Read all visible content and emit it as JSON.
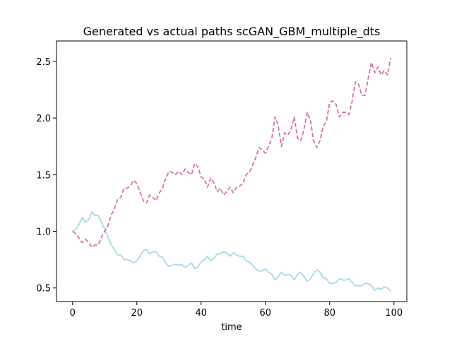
{
  "chart_data": {
    "type": "line",
    "title": "Generated vs actual paths scGAN_GBM_multiple_dts",
    "xlabel": "time",
    "ylabel": "",
    "xlim": [
      -5,
      104
    ],
    "ylim": [
      0.38,
      2.68
    ],
    "grid": false,
    "xticks": [
      0,
      20,
      40,
      60,
      80,
      100
    ],
    "yticks": [
      0.5,
      1.0,
      1.5,
      2.0,
      2.5
    ],
    "xtick_labels": [
      "0",
      "20",
      "40",
      "60",
      "80",
      "100"
    ],
    "ytick_labels": [
      "0.5",
      "1.0",
      "1.5",
      "2.0",
      "2.5"
    ],
    "series": [
      {
        "color": "#a9d8e6",
        "style": "solid",
        "x": [
          0,
          1,
          2,
          3,
          4,
          5,
          6,
          7,
          8,
          9,
          10,
          11,
          12,
          13,
          14,
          15,
          16,
          17,
          18,
          19,
          20,
          21,
          22,
          23,
          24,
          25,
          26,
          27,
          28,
          29,
          30,
          31,
          32,
          33,
          34,
          35,
          36,
          37,
          38,
          39,
          40,
          41,
          42,
          43,
          44,
          45,
          46,
          47,
          48,
          49,
          50,
          51,
          52,
          53,
          54,
          55,
          56,
          57,
          58,
          59,
          60,
          61,
          62,
          63,
          64,
          65,
          66,
          67,
          68,
          69,
          70,
          71,
          72,
          73,
          74,
          75,
          76,
          77,
          78,
          79,
          80,
          81,
          82,
          83,
          84,
          85,
          86,
          87,
          88,
          89,
          90,
          91,
          92,
          93,
          94,
          95,
          96,
          97,
          98,
          99
        ],
        "y": [
          1.0,
          1.02,
          1.06,
          1.12,
          1.08,
          1.1,
          1.17,
          1.14,
          1.14,
          1.08,
          1.02,
          0.95,
          0.88,
          0.84,
          0.79,
          0.79,
          0.75,
          0.75,
          0.74,
          0.72,
          0.74,
          0.78,
          0.83,
          0.84,
          0.8,
          0.82,
          0.82,
          0.78,
          0.77,
          0.72,
          0.69,
          0.7,
          0.71,
          0.7,
          0.71,
          0.68,
          0.7,
          0.72,
          0.67,
          0.69,
          0.73,
          0.75,
          0.78,
          0.74,
          0.76,
          0.8,
          0.8,
          0.82,
          0.81,
          0.78,
          0.81,
          0.79,
          0.78,
          0.78,
          0.74,
          0.73,
          0.7,
          0.67,
          0.65,
          0.65,
          0.67,
          0.64,
          0.62,
          0.57,
          0.6,
          0.64,
          0.61,
          0.62,
          0.61,
          0.57,
          0.62,
          0.64,
          0.6,
          0.56,
          0.58,
          0.63,
          0.66,
          0.64,
          0.59,
          0.58,
          0.54,
          0.54,
          0.55,
          0.58,
          0.57,
          0.57,
          0.58,
          0.55,
          0.52,
          0.52,
          0.52,
          0.54,
          0.54,
          0.52,
          0.48,
          0.5,
          0.49,
          0.51,
          0.5,
          0.47
        ]
      },
      {
        "color": "#d8729a",
        "style": "dashed",
        "x": [
          0,
          1,
          2,
          3,
          4,
          5,
          6,
          7,
          8,
          9,
          10,
          11,
          12,
          13,
          14,
          15,
          16,
          17,
          18,
          19,
          20,
          21,
          22,
          23,
          24,
          25,
          26,
          27,
          28,
          29,
          30,
          31,
          32,
          33,
          34,
          35,
          36,
          37,
          38,
          39,
          40,
          41,
          42,
          43,
          44,
          45,
          46,
          47,
          48,
          49,
          50,
          51,
          52,
          53,
          54,
          55,
          56,
          57,
          58,
          59,
          60,
          61,
          62,
          63,
          64,
          65,
          66,
          67,
          68,
          69,
          70,
          71,
          72,
          73,
          74,
          75,
          76,
          77,
          78,
          79,
          80,
          81,
          82,
          83,
          84,
          85,
          86,
          87,
          88,
          89,
          90,
          91,
          92,
          93,
          94,
          95,
          96,
          97,
          98,
          99
        ],
        "y": [
          1.0,
          0.98,
          0.94,
          0.9,
          0.93,
          0.9,
          0.86,
          0.88,
          0.88,
          0.95,
          1.0,
          1.05,
          1.14,
          1.2,
          1.28,
          1.3,
          1.38,
          1.38,
          1.4,
          1.45,
          1.42,
          1.35,
          1.27,
          1.25,
          1.32,
          1.3,
          1.27,
          1.34,
          1.38,
          1.47,
          1.53,
          1.52,
          1.5,
          1.53,
          1.5,
          1.55,
          1.52,
          1.5,
          1.6,
          1.57,
          1.48,
          1.46,
          1.39,
          1.47,
          1.43,
          1.35,
          1.38,
          1.32,
          1.35,
          1.39,
          1.34,
          1.39,
          1.4,
          1.42,
          1.5,
          1.52,
          1.58,
          1.65,
          1.74,
          1.72,
          1.69,
          1.75,
          1.82,
          2.01,
          1.93,
          1.75,
          1.87,
          1.85,
          1.9,
          2.01,
          1.82,
          1.8,
          1.9,
          2.05,
          1.98,
          1.8,
          1.74,
          1.8,
          1.93,
          1.97,
          2.14,
          2.15,
          2.12,
          2.01,
          2.05,
          2.05,
          2.03,
          2.15,
          2.32,
          2.3,
          2.2,
          2.2,
          2.35,
          2.49,
          2.4,
          2.45,
          2.38,
          2.42,
          2.38,
          2.53
        ]
      }
    ]
  }
}
